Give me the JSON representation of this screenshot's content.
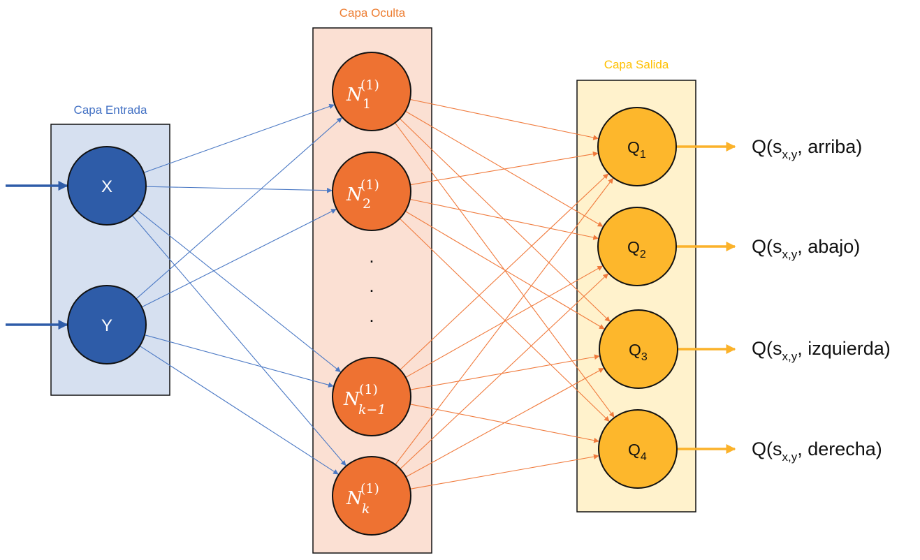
{
  "layers": {
    "input": {
      "title": "Capa Entrada",
      "color": "#4472c4",
      "bg": "#d6e0f0"
    },
    "hidden": {
      "title": "Capa Oculta",
      "color": "#ed7d31",
      "bg": "#fbe0d3"
    },
    "output": {
      "title": "Capa Salida",
      "color": "#ffc000",
      "bg": "#fff2cc"
    }
  },
  "input_nodes": [
    {
      "label": "X"
    },
    {
      "label": "Y"
    }
  ],
  "hidden_nodes": [
    {
      "base": "N",
      "sub": "1",
      "sup": "(1)"
    },
    {
      "base": "N",
      "sub": "2",
      "sup": "(1)"
    },
    {
      "base": "N",
      "sub": "k−1",
      "sup": "(1)"
    },
    {
      "base": "N",
      "sub": "k",
      "sup": "(1)"
    }
  ],
  "ellipsis": ".",
  "output_nodes": [
    {
      "base": "Q",
      "sub": "1",
      "output": {
        "prefix": "Q(s",
        "sub": "x,y",
        "suffix": ", arriba)"
      }
    },
    {
      "base": "Q",
      "sub": "2",
      "output": {
        "prefix": "Q(s",
        "sub": "x,y",
        "suffix": ", abajo)"
      }
    },
    {
      "base": "Q",
      "sub": "3",
      "output": {
        "prefix": "Q(s",
        "sub": "x,y",
        "suffix": ", izquierda)"
      }
    },
    {
      "base": "Q",
      "sub": "4",
      "output": {
        "prefix": "Q(s",
        "sub": "x,y",
        "suffix": ", derecha)"
      }
    }
  ],
  "colors": {
    "input_node": "#2e5ca8",
    "hidden_node": "#ee7232",
    "output_node": "#fdb72c",
    "input_edge": "#4a78c4",
    "hidden_edge": "#f07a3c",
    "output_arrow": "#fbb22a"
  }
}
